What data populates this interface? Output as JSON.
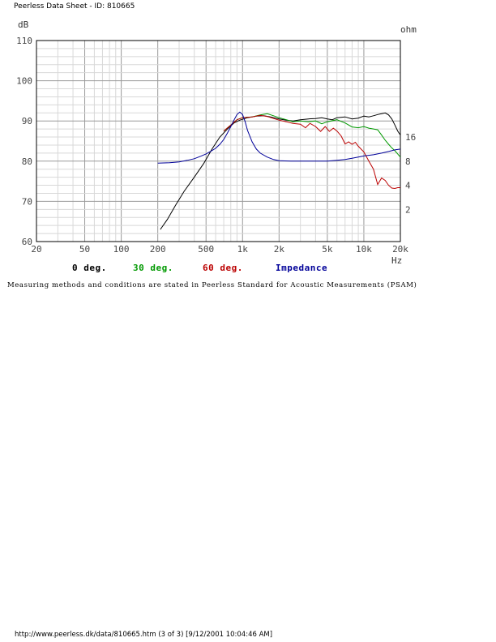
{
  "page": {
    "header": "Peerless Data Sheet - ID: 810665",
    "footer": "http://www.peerless.dk/data/810665.htm (3 of 3) [9/12/2001 10:04:46 AM]",
    "note": "Measuring methods and conditions are stated in Peerless Standard for Acoustic Measurements (PSAM)"
  },
  "chart_data": {
    "type": "line",
    "title": "",
    "ylabel": "dB",
    "y2label": "ohm",
    "xlabel": "Hz",
    "xscale": "log",
    "xlim": [
      20,
      20000
    ],
    "ylim": [
      60,
      110
    ],
    "grid": true,
    "xticks": [
      {
        "v": 20,
        "l": "20"
      },
      {
        "v": 50,
        "l": "50"
      },
      {
        "v": 100,
        "l": "100"
      },
      {
        "v": 200,
        "l": "200"
      },
      {
        "v": 500,
        "l": "500"
      },
      {
        "v": 1000,
        "l": "1k"
      },
      {
        "v": 2000,
        "l": "2k"
      },
      {
        "v": 5000,
        "l": "5k"
      },
      {
        "v": 10000,
        "l": "10k"
      },
      {
        "v": 20000,
        "l": "20k"
      }
    ],
    "yticks": [
      60,
      70,
      80,
      90,
      100,
      110
    ],
    "y2ticks": [
      {
        "l": "16",
        "db": 86
      },
      {
        "l": "8",
        "db": 80
      },
      {
        "l": "4",
        "db": 74
      },
      {
        "l": "2",
        "db": 68
      }
    ],
    "legend_position": "bottom",
    "series": [
      {
        "name": "0 deg.",
        "color": "#000000",
        "points": [
          [
            210,
            63
          ],
          [
            240,
            65.5
          ],
          [
            280,
            69
          ],
          [
            330,
            72.5
          ],
          [
            400,
            76
          ],
          [
            480,
            79.5
          ],
          [
            560,
            83
          ],
          [
            650,
            86
          ],
          [
            750,
            88
          ],
          [
            850,
            89.5
          ],
          [
            950,
            90.2
          ],
          [
            1100,
            90.8
          ],
          [
            1300,
            91.2
          ],
          [
            1500,
            91.3
          ],
          [
            1700,
            91
          ],
          [
            2000,
            90.5
          ],
          [
            2300,
            90.2
          ],
          [
            2600,
            90
          ],
          [
            3000,
            90.3
          ],
          [
            3500,
            90.5
          ],
          [
            4000,
            90.6
          ],
          [
            4500,
            90.8
          ],
          [
            5000,
            90.5
          ],
          [
            5500,
            90.3
          ],
          [
            6000,
            90.8
          ],
          [
            7000,
            91
          ],
          [
            8000,
            90.5
          ],
          [
            9000,
            90.7
          ],
          [
            10000,
            91.2
          ],
          [
            11000,
            91
          ],
          [
            12000,
            91.3
          ],
          [
            13000,
            91.6
          ],
          [
            14000,
            91.8
          ],
          [
            15000,
            92
          ],
          [
            16000,
            91.5
          ],
          [
            17000,
            90.5
          ],
          [
            18000,
            89
          ],
          [
            19000,
            87.5
          ],
          [
            20000,
            86.5
          ]
        ]
      },
      {
        "name": "30 deg.",
        "color": "#009900",
        "points": [
          [
            700,
            87.5
          ],
          [
            800,
            89
          ],
          [
            900,
            90.3
          ],
          [
            1000,
            90.8
          ],
          [
            1200,
            91
          ],
          [
            1400,
            91.5
          ],
          [
            1600,
            91.8
          ],
          [
            1800,
            91.3
          ],
          [
            2000,
            90.8
          ],
          [
            2300,
            90.3
          ],
          [
            2600,
            89.8
          ],
          [
            3000,
            90
          ],
          [
            3500,
            89.8
          ],
          [
            4000,
            90
          ],
          [
            4500,
            89.3
          ],
          [
            5000,
            89.8
          ],
          [
            6000,
            90.3
          ],
          [
            7000,
            89.5
          ],
          [
            8000,
            88.5
          ],
          [
            9000,
            88.3
          ],
          [
            10000,
            88.6
          ],
          [
            11000,
            88.2
          ],
          [
            12000,
            88
          ],
          [
            13000,
            87.8
          ],
          [
            14000,
            86.5
          ],
          [
            15000,
            85.2
          ],
          [
            16000,
            84.2
          ],
          [
            17000,
            83.3
          ],
          [
            18000,
            82.6
          ],
          [
            19000,
            81.8
          ],
          [
            20000,
            81
          ]
        ]
      },
      {
        "name": "60 deg.",
        "color": "#bb0000",
        "points": [
          [
            700,
            87.5
          ],
          [
            800,
            89
          ],
          [
            900,
            90.3
          ],
          [
            1000,
            90.8
          ],
          [
            1200,
            91
          ],
          [
            1400,
            91.4
          ],
          [
            1600,
            91.1
          ],
          [
            1800,
            90.6
          ],
          [
            2000,
            90.2
          ],
          [
            2300,
            89.8
          ],
          [
            2600,
            89.4
          ],
          [
            3000,
            89.2
          ],
          [
            3300,
            88.3
          ],
          [
            3600,
            89.4
          ],
          [
            4000,
            88.6
          ],
          [
            4400,
            87.4
          ],
          [
            4800,
            88.6
          ],
          [
            5200,
            87.4
          ],
          [
            5600,
            88.2
          ],
          [
            6000,
            87.5
          ],
          [
            6500,
            86.3
          ],
          [
            7000,
            84.3
          ],
          [
            7500,
            84.8
          ],
          [
            8000,
            84.2
          ],
          [
            8500,
            84.7
          ],
          [
            9000,
            83.7
          ],
          [
            10000,
            82.3
          ],
          [
            11000,
            80
          ],
          [
            12000,
            78
          ],
          [
            13000,
            74.2
          ],
          [
            14000,
            75.8
          ],
          [
            15000,
            75.2
          ],
          [
            16000,
            74
          ],
          [
            17000,
            73.3
          ],
          [
            18000,
            73.2
          ],
          [
            19000,
            73.4
          ],
          [
            20000,
            73.4
          ]
        ]
      },
      {
        "name": "Impedance",
        "color": "#000099",
        "points": [
          [
            200,
            79.5
          ],
          [
            250,
            79.6
          ],
          [
            300,
            79.8
          ],
          [
            350,
            80.2
          ],
          [
            400,
            80.6
          ],
          [
            450,
            81.2
          ],
          [
            500,
            81.8
          ],
          [
            550,
            82.5
          ],
          [
            600,
            83.2
          ],
          [
            650,
            84.2
          ],
          [
            700,
            85.4
          ],
          [
            750,
            87
          ],
          [
            800,
            88.6
          ],
          [
            850,
            90.2
          ],
          [
            900,
            91.6
          ],
          [
            950,
            92.2
          ],
          [
            1000,
            91.6
          ],
          [
            1050,
            89.8
          ],
          [
            1100,
            87.6
          ],
          [
            1200,
            84.8
          ],
          [
            1300,
            83
          ],
          [
            1400,
            82
          ],
          [
            1600,
            81
          ],
          [
            1800,
            80.4
          ],
          [
            2000,
            80.1
          ],
          [
            2500,
            80
          ],
          [
            3000,
            80
          ],
          [
            4000,
            80
          ],
          [
            5000,
            80
          ],
          [
            6000,
            80.2
          ],
          [
            7000,
            80.4
          ],
          [
            8000,
            80.7
          ],
          [
            9000,
            81
          ],
          [
            10000,
            81.3
          ],
          [
            12000,
            81.6
          ],
          [
            14000,
            82
          ],
          [
            16000,
            82.4
          ],
          [
            18000,
            82.8
          ],
          [
            20000,
            83
          ]
        ]
      }
    ]
  }
}
